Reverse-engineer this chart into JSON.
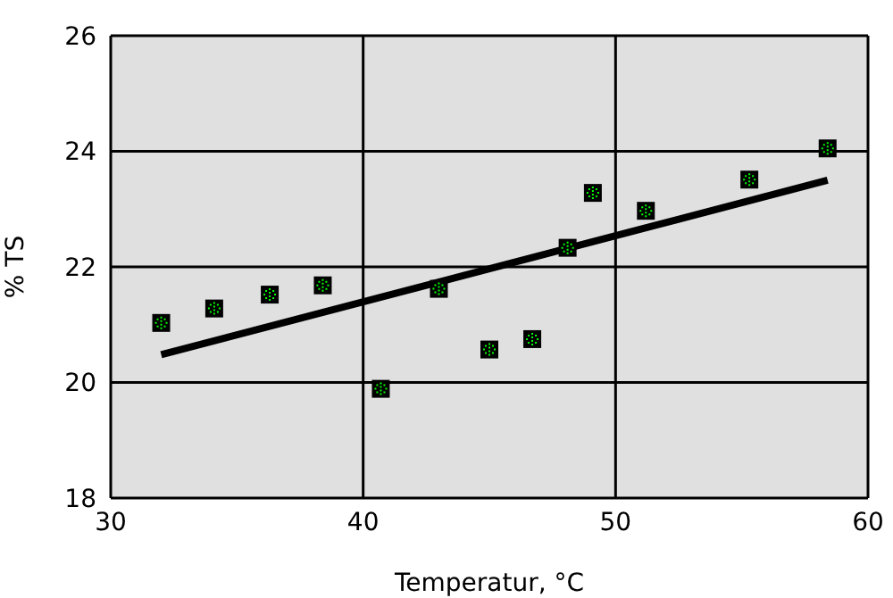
{
  "chart_data": {
    "type": "scatter",
    "xlabel": "Temperatur, °C",
    "ylabel": "% TS",
    "xlim": [
      30,
      60
    ],
    "xticks": [
      30,
      40,
      50,
      60
    ],
    "ylim": [
      18,
      26
    ],
    "yticks": [
      18,
      20,
      22,
      24,
      26
    ],
    "grid": true,
    "series": [
      {
        "marker": "square",
        "color": "#00ff00",
        "x": [
          32.0,
          34.1,
          36.3,
          38.4,
          40.7,
          43.0,
          45.0,
          46.7,
          48.1,
          49.1,
          51.2,
          55.3,
          58.4
        ],
        "values": [
          21.03,
          21.28,
          21.52,
          21.68,
          19.89,
          21.62,
          20.57,
          20.75,
          22.33,
          23.28,
          22.97,
          23.51,
          24.05
        ]
      },
      {
        "type": "line",
        "color": "#000000",
        "x": [
          32.0,
          58.4
        ],
        "values": [
          20.48,
          23.5
        ]
      }
    ]
  }
}
